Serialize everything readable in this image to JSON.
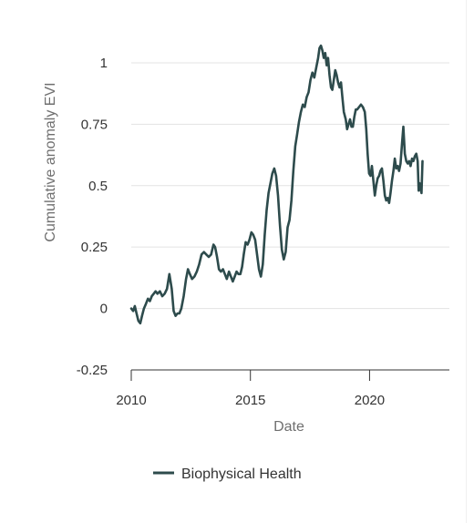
{
  "chart_data": {
    "type": "line",
    "xlabel": "Date",
    "ylabel": "Cumulative anomaly EVI",
    "xlim": [
      2010,
      2023.35
    ],
    "ylim": [
      -0.25,
      1.1
    ],
    "x_ticks": [
      2010,
      2015,
      2020
    ],
    "x_tick_labels": [
      "2010",
      "2015",
      "2020"
    ],
    "y_ticks": [
      -0.25,
      0,
      0.25,
      0.5,
      0.75,
      1
    ],
    "y_tick_labels": [
      "-0.25",
      "0",
      "0.25",
      "0.5",
      "0.75",
      "1"
    ],
    "grid": true,
    "legend_position": "bottom",
    "series": [
      {
        "name": "Biophysical Health",
        "color": "#2d4b4c",
        "points": [
          [
            2010.0,
            0.0
          ],
          [
            2010.08,
            -0.01
          ],
          [
            2010.15,
            0.01
          ],
          [
            2010.22,
            -0.02
          ],
          [
            2010.3,
            -0.05
          ],
          [
            2010.38,
            -0.06
          ],
          [
            2010.45,
            -0.03
          ],
          [
            2010.53,
            0.0
          ],
          [
            2010.62,
            0.02
          ],
          [
            2010.7,
            0.04
          ],
          [
            2010.78,
            0.03
          ],
          [
            2010.86,
            0.05
          ],
          [
            2010.94,
            0.06
          ],
          [
            2011.02,
            0.07
          ],
          [
            2011.1,
            0.06
          ],
          [
            2011.2,
            0.07
          ],
          [
            2011.3,
            0.05
          ],
          [
            2011.4,
            0.06
          ],
          [
            2011.5,
            0.08
          ],
          [
            2011.6,
            0.14
          ],
          [
            2011.7,
            0.08
          ],
          [
            2011.78,
            -0.01
          ],
          [
            2011.86,
            -0.03
          ],
          [
            2011.94,
            -0.02
          ],
          [
            2012.02,
            -0.02
          ],
          [
            2012.1,
            0.0
          ],
          [
            2012.2,
            0.05
          ],
          [
            2012.3,
            0.12
          ],
          [
            2012.38,
            0.16
          ],
          [
            2012.46,
            0.14
          ],
          [
            2012.55,
            0.12
          ],
          [
            2012.65,
            0.13
          ],
          [
            2012.75,
            0.15
          ],
          [
            2012.85,
            0.18
          ],
          [
            2012.95,
            0.22
          ],
          [
            2013.05,
            0.23
          ],
          [
            2013.15,
            0.22
          ],
          [
            2013.25,
            0.21
          ],
          [
            2013.35,
            0.22
          ],
          [
            2013.45,
            0.26
          ],
          [
            2013.52,
            0.25
          ],
          [
            2013.6,
            0.21
          ],
          [
            2013.68,
            0.16
          ],
          [
            2013.76,
            0.15
          ],
          [
            2013.85,
            0.16
          ],
          [
            2013.93,
            0.14
          ],
          [
            2014.01,
            0.12
          ],
          [
            2014.1,
            0.15
          ],
          [
            2014.18,
            0.13
          ],
          [
            2014.26,
            0.11
          ],
          [
            2014.34,
            0.13
          ],
          [
            2014.42,
            0.15
          ],
          [
            2014.5,
            0.14
          ],
          [
            2014.58,
            0.14
          ],
          [
            2014.65,
            0.17
          ],
          [
            2014.72,
            0.22
          ],
          [
            2014.8,
            0.27
          ],
          [
            2014.88,
            0.26
          ],
          [
            2014.96,
            0.28
          ],
          [
            2015.04,
            0.31
          ],
          [
            2015.12,
            0.3
          ],
          [
            2015.2,
            0.28
          ],
          [
            2015.28,
            0.22
          ],
          [
            2015.36,
            0.16
          ],
          [
            2015.44,
            0.13
          ],
          [
            2015.52,
            0.18
          ],
          [
            2015.6,
            0.3
          ],
          [
            2015.68,
            0.4
          ],
          [
            2015.76,
            0.47
          ],
          [
            2015.84,
            0.51
          ],
          [
            2015.92,
            0.55
          ],
          [
            2016.0,
            0.57
          ],
          [
            2016.08,
            0.54
          ],
          [
            2016.16,
            0.46
          ],
          [
            2016.24,
            0.34
          ],
          [
            2016.32,
            0.24
          ],
          [
            2016.4,
            0.2
          ],
          [
            2016.48,
            0.23
          ],
          [
            2016.56,
            0.33
          ],
          [
            2016.64,
            0.36
          ],
          [
            2016.72,
            0.44
          ],
          [
            2016.8,
            0.56
          ],
          [
            2016.88,
            0.66
          ],
          [
            2016.96,
            0.71
          ],
          [
            2017.04,
            0.76
          ],
          [
            2017.12,
            0.8
          ],
          [
            2017.2,
            0.83
          ],
          [
            2017.28,
            0.82
          ],
          [
            2017.36,
            0.86
          ],
          [
            2017.44,
            0.88
          ],
          [
            2017.52,
            0.93
          ],
          [
            2017.6,
            0.96
          ],
          [
            2017.68,
            0.94
          ],
          [
            2017.76,
            0.98
          ],
          [
            2017.84,
            1.02
          ],
          [
            2017.9,
            1.06
          ],
          [
            2017.96,
            1.07
          ],
          [
            2018.02,
            1.05
          ],
          [
            2018.08,
            1.02
          ],
          [
            2018.14,
            1.04
          ],
          [
            2018.2,
            0.99
          ],
          [
            2018.26,
            1.02
          ],
          [
            2018.32,
            0.95
          ],
          [
            2018.38,
            0.9
          ],
          [
            2018.44,
            0.89
          ],
          [
            2018.5,
            0.93
          ],
          [
            2018.56,
            0.97
          ],
          [
            2018.62,
            0.95
          ],
          [
            2018.68,
            0.92
          ],
          [
            2018.74,
            0.9
          ],
          [
            2018.8,
            0.92
          ],
          [
            2018.86,
            0.86
          ],
          [
            2018.92,
            0.8
          ],
          [
            2019.0,
            0.77
          ],
          [
            2019.06,
            0.73
          ],
          [
            2019.12,
            0.75
          ],
          [
            2019.18,
            0.77
          ],
          [
            2019.24,
            0.74
          ],
          [
            2019.3,
            0.74
          ],
          [
            2019.36,
            0.78
          ],
          [
            2019.42,
            0.81
          ],
          [
            2019.48,
            0.81
          ],
          [
            2019.56,
            0.82
          ],
          [
            2019.64,
            0.83
          ],
          [
            2019.72,
            0.82
          ],
          [
            2019.8,
            0.8
          ],
          [
            2019.86,
            0.73
          ],
          [
            2019.92,
            0.63
          ],
          [
            2019.98,
            0.55
          ],
          [
            2020.04,
            0.54
          ],
          [
            2020.1,
            0.58
          ],
          [
            2020.16,
            0.52
          ],
          [
            2020.22,
            0.46
          ],
          [
            2020.28,
            0.5
          ],
          [
            2020.34,
            0.53
          ],
          [
            2020.4,
            0.54
          ],
          [
            2020.46,
            0.56
          ],
          [
            2020.52,
            0.57
          ],
          [
            2020.58,
            0.52
          ],
          [
            2020.64,
            0.46
          ],
          [
            2020.7,
            0.44
          ],
          [
            2020.76,
            0.45
          ],
          [
            2020.82,
            0.43
          ],
          [
            2020.88,
            0.47
          ],
          [
            2020.94,
            0.52
          ],
          [
            2021.0,
            0.56
          ],
          [
            2021.06,
            0.61
          ],
          [
            2021.12,
            0.57
          ],
          [
            2021.18,
            0.58
          ],
          [
            2021.24,
            0.56
          ],
          [
            2021.3,
            0.59
          ],
          [
            2021.36,
            0.67
          ],
          [
            2021.42,
            0.74
          ],
          [
            2021.48,
            0.63
          ],
          [
            2021.54,
            0.6
          ],
          [
            2021.6,
            0.59
          ],
          [
            2021.66,
            0.6
          ],
          [
            2021.72,
            0.58
          ],
          [
            2021.78,
            0.61
          ],
          [
            2021.84,
            0.6
          ],
          [
            2021.9,
            0.62
          ],
          [
            2021.96,
            0.63
          ],
          [
            2022.02,
            0.6
          ],
          [
            2022.06,
            0.48
          ],
          [
            2022.1,
            0.51
          ],
          [
            2022.14,
            0.49
          ],
          [
            2022.18,
            0.47
          ],
          [
            2022.22,
            0.6
          ]
        ]
      }
    ]
  }
}
